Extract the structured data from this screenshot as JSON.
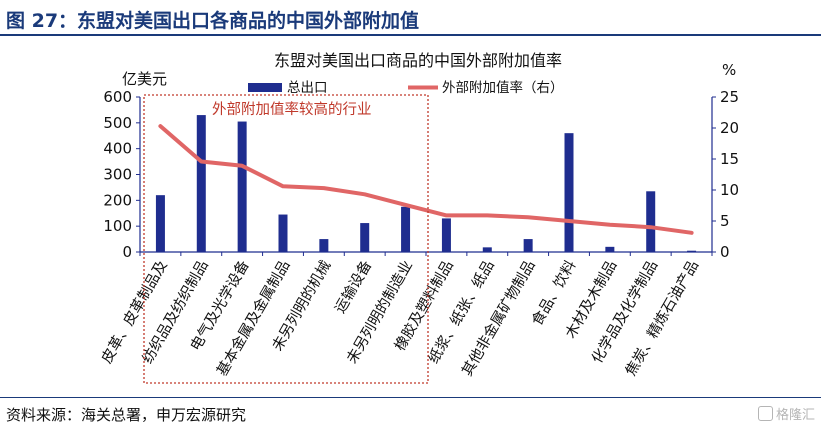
{
  "figure": {
    "title": "图 27：东盟对美国出口各商品的中国外部附加值",
    "source": "资料来源：海关总署，申万宏源研究",
    "watermark": "格隆汇"
  },
  "colors": {
    "bar": "#1f2d8f",
    "line": "#e06666",
    "highlight_box": "#c0392b",
    "annotation_text": "#c0392b",
    "header": "#1a3a7a"
  },
  "chart_data": {
    "type": "bar",
    "title": "东盟对美国出口商品的中国外部附加值率",
    "ylabel_left": "亿美元",
    "ylabel_right": "%",
    "ylim_left": [
      0,
      600
    ],
    "ylim_right": [
      0,
      25
    ],
    "yticks_left": [
      "0",
      "100",
      "200",
      "300",
      "400",
      "500",
      "600"
    ],
    "yticks_right": [
      "0",
      "5",
      "10",
      "15",
      "20",
      "25"
    ],
    "legend_position": "top",
    "categories": [
      "皮革、皮革制品及",
      "纺织品及纺织制品",
      "电气及光学设备",
      "基本金属及金属制品",
      "未另列明的机械",
      "运输设备",
      "未另列明的制造业",
      "橡胶及塑料制品",
      "纸浆、纸张、纸品",
      "其他非金属矿物制品",
      "食品、饮料",
      "木材及木制品",
      "化学品及化学制品",
      "焦炭、精炼石油产品"
    ],
    "series": [
      {
        "name": "总出口",
        "type": "bar",
        "axis": "left",
        "values": [
          220,
          530,
          505,
          145,
          50,
          112,
          175,
          130,
          18,
          50,
          460,
          20,
          235,
          5
        ]
      },
      {
        "name": "外部附加值率（右）",
        "type": "line",
        "axis": "right",
        "values": [
          20.3,
          14.6,
          13.9,
          10.6,
          10.3,
          9.3,
          7.6,
          5.9,
          5.9,
          5.6,
          5.0,
          4.4,
          4.0,
          3.1
        ]
      }
    ],
    "annotation": {
      "text": "外部附加值率较高的行业",
      "covers_categories": [
        0,
        6
      ]
    }
  }
}
